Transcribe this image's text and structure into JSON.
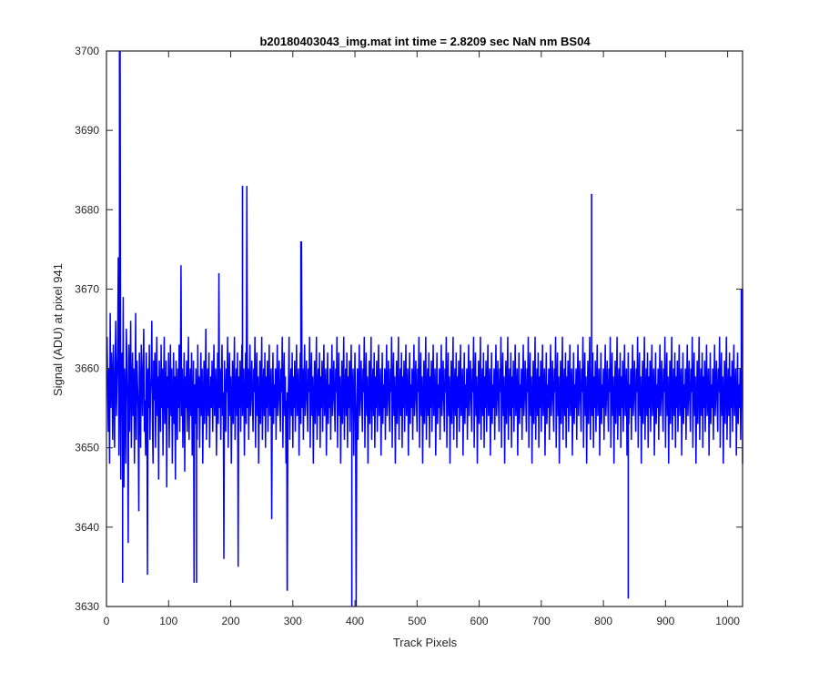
{
  "chart_data": {
    "type": "line",
    "title": "b20180403043_img.mat int time = 2.8209 sec  NaN nm BS04",
    "xlabel": "Track Pixels",
    "ylabel": "Signal (ADU) at pixel 941",
    "xlim": [
      0,
      1024
    ],
    "ylim": [
      3630,
      3700
    ],
    "xticks": [
      0,
      100,
      200,
      300,
      400,
      500,
      600,
      700,
      800,
      900,
      1000
    ],
    "yticks": [
      3630,
      3640,
      3650,
      3660,
      3670,
      3680,
      3690,
      3700
    ],
    "xtick_labels": [
      "0",
      "100",
      "200",
      "300",
      "400",
      "500",
      "600",
      "700",
      "800",
      "900",
      "1000"
    ],
    "ytick_labels": [
      "3630",
      "3640",
      "3650",
      "3660",
      "3670",
      "3680",
      "3690",
      "3700"
    ],
    "grid": false,
    "legend": "none",
    "series": [
      {
        "color": "#0000ff",
        "x_start": 1,
        "x_step": 1,
        "values": [
          3664,
          3657,
          3652,
          3660,
          3648,
          3667,
          3655,
          3662,
          3659,
          3651,
          3663,
          3657,
          3650,
          3661,
          3666,
          3654,
          3658,
          3662,
          3674,
          3649,
          3656,
          3700,
          3646,
          3659,
          3662,
          3653,
          3669,
          3645,
          3660,
          3657,
          3648,
          3665,
          3661,
          3655,
          3638,
          3663,
          3652,
          3659,
          3666,
          3650,
          3657,
          3662,
          3654,
          3660,
          3648,
          3656,
          3667,
          3651,
          3661,
          3658,
          3655,
          3642,
          3662,
          3657,
          3650,
          3663,
          3659,
          3654,
          3660,
          3665,
          3652,
          3656,
          3649,
          3662,
          3658,
          3634,
          3660,
          3655,
          3663,
          3651,
          3657,
          3659,
          3666,
          3653,
          3648,
          3661,
          3656,
          3662,
          3650,
          3658,
          3664,
          3654,
          3659,
          3646,
          3661,
          3657,
          3652,
          3663,
          3655,
          3660,
          3649,
          3658,
          3664,
          3653,
          3656,
          3661,
          3645,
          3659,
          3655,
          3662,
          3650,
          3657,
          3663,
          3654,
          3660,
          3648,
          3656,
          3662,
          3653,
          3659,
          3646,
          3661,
          3657,
          3651,
          3660,
          3655,
          3663,
          3652,
          3658,
          3673,
          3654,
          3660,
          3650,
          3656,
          3662,
          3647,
          3659,
          3655,
          3661,
          3652,
          3658,
          3664,
          3651,
          3657,
          3660,
          3654,
          3662,
          3649,
          3656,
          3661,
          3633,
          3658,
          3653,
          3660,
          3656,
          3651,
          3663,
          3655,
          3659,
          3650,
          3657,
          3662,
          3654,
          3660,
          3648,
          3656,
          3661,
          3653,
          3658,
          3665,
          3651,
          3657,
          3660,
          3654,
          3662,
          3650,
          3656,
          3659,
          3655,
          3661,
          3652,
          3658,
          3663,
          3654,
          3657,
          3660,
          3649,
          3656,
          3662,
          3653,
          3672,
          3655,
          3660,
          3651,
          3658,
          3663,
          3654,
          3657,
          3636,
          3661,
          3656,
          3652,
          3660,
          3657,
          3664,
          3650,
          3658,
          3662,
          3654,
          3659,
          3648,
          3656,
          3661,
          3653,
          3658,
          3664,
          3651,
          3657,
          3660,
          3654,
          3662,
          3635,
          3659,
          3655,
          3661,
          3652,
          3658,
          3663,
          3654,
          3657,
          3660,
          3649,
          3656,
          3662,
          3653,
          3683,
          3655,
          3660,
          3651,
          3658,
          3663,
          3654,
          3657,
          3661,
          3656,
          3652,
          3660,
          3657,
          3664,
          3650,
          3658,
          3662,
          3654,
          3659,
          3648,
          3656,
          3661,
          3653,
          3658,
          3664,
          3651,
          3657,
          3660,
          3654,
          3662,
          3650,
          3659,
          3655,
          3661,
          3652,
          3658,
          3663,
          3654,
          3657,
          3660,
          3641,
          3656,
          3662,
          3653,
          3658,
          3655,
          3660,
          3651,
          3658,
          3663,
          3654,
          3657,
          3661,
          3656,
          3652,
          3660,
          3657,
          3664,
          3650,
          3658,
          3662,
          3654,
          3659,
          3648,
          3656,
          3632,
          3653,
          3658,
          3664,
          3651,
          3657,
          3660,
          3654,
          3662,
          3650,
          3659,
          3655,
          3661,
          3652,
          3658,
          3663,
          3654,
          3657,
          3660,
          3649,
          3656,
          3662,
          3653,
          3676,
          3655,
          3660,
          3651,
          3658,
          3663,
          3654,
          3657,
          3661,
          3656,
          3652,
          3660,
          3657,
          3664,
          3650,
          3658,
          3662,
          3654,
          3659,
          3648,
          3656,
          3661,
          3653,
          3658,
          3664,
          3651,
          3657,
          3660,
          3654,
          3662,
          3650,
          3659,
          3655,
          3661,
          3652,
          3658,
          3663,
          3654,
          3657,
          3660,
          3649,
          3656,
          3662,
          3653,
          3658,
          3655,
          3660,
          3651,
          3658,
          3663,
          3654,
          3657,
          3661,
          3656,
          3652,
          3660,
          3657,
          3664,
          3650,
          3658,
          3662,
          3654,
          3659,
          3648,
          3656,
          3661,
          3653,
          3658,
          3664,
          3651,
          3657,
          3660,
          3654,
          3662,
          3650,
          3659,
          3655,
          3661,
          3652,
          3658,
          3663,
          3654,
          3657,
          3660,
          3649,
          3656,
          3662,
          3653,
          3630,
          3655,
          3660,
          3651,
          3658,
          3663,
          3654,
          3657,
          3661,
          3656,
          3652,
          3660,
          3657,
          3664,
          3650,
          3658,
          3662,
          3654,
          3659,
          3648,
          3656,
          3661,
          3653,
          3658,
          3664,
          3651,
          3657,
          3660,
          3654,
          3662,
          3650,
          3659,
          3655,
          3661,
          3652,
          3658,
          3663,
          3654,
          3657,
          3660,
          3649,
          3656,
          3662,
          3653,
          3658,
          3655,
          3660,
          3651,
          3658,
          3663,
          3654,
          3657,
          3661,
          3656,
          3652,
          3660,
          3657,
          3664,
          3650,
          3658,
          3662,
          3654,
          3659,
          3648,
          3656,
          3661,
          3653,
          3658,
          3664,
          3651,
          3657,
          3660,
          3654,
          3662,
          3650,
          3659,
          3655,
          3661,
          3652,
          3658,
          3663,
          3654,
          3657,
          3660,
          3649,
          3656,
          3662,
          3653,
          3658,
          3655,
          3660,
          3651,
          3658,
          3663,
          3654,
          3657,
          3661,
          3656,
          3652,
          3660,
          3657,
          3664,
          3650,
          3658,
          3662,
          3654,
          3659,
          3648,
          3656,
          3661,
          3653,
          3658,
          3664,
          3651,
          3657,
          3660,
          3654,
          3662,
          3650,
          3659,
          3655,
          3661,
          3652,
          3658,
          3663,
          3654,
          3657,
          3660,
          3649,
          3656,
          3662,
          3653,
          3658,
          3655,
          3660,
          3651,
          3658,
          3663,
          3654,
          3657,
          3661,
          3656,
          3652,
          3660,
          3657,
          3664,
          3650,
          3658,
          3662,
          3654,
          3659,
          3648,
          3656,
          3661,
          3653,
          3658,
          3664,
          3651,
          3657,
          3660,
          3654,
          3662,
          3650,
          3659,
          3655,
          3661,
          3652,
          3658,
          3663,
          3654,
          3657,
          3660,
          3649,
          3656,
          3662,
          3653,
          3658,
          3655,
          3660,
          3651,
          3658,
          3663,
          3654,
          3657,
          3661,
          3656,
          3652,
          3660,
          3657,
          3664,
          3650,
          3658,
          3662,
          3654,
          3659,
          3648,
          3656,
          3661,
          3653,
          3658,
          3664,
          3651,
          3657,
          3660,
          3654,
          3662,
          3650,
          3659,
          3655,
          3661,
          3652,
          3658,
          3663,
          3654,
          3657,
          3660,
          3649,
          3656,
          3662,
          3653,
          3658,
          3655,
          3660,
          3651,
          3658,
          3663,
          3654,
          3657,
          3661,
          3656,
          3652,
          3660,
          3657,
          3664,
          3650,
          3658,
          3662,
          3654,
          3659,
          3648,
          3656,
          3661,
          3653,
          3658,
          3664,
          3651,
          3657,
          3660,
          3654,
          3662,
          3650,
          3659,
          3655,
          3661,
          3652,
          3658,
          3663,
          3654,
          3657,
          3660,
          3649,
          3656,
          3662,
          3653,
          3658,
          3655,
          3660,
          3651,
          3658,
          3663,
          3654,
          3657,
          3661,
          3656,
          3652,
          3660,
          3657,
          3664,
          3650,
          3658,
          3662,
          3654,
          3659,
          3648,
          3656,
          3661,
          3653,
          3658,
          3664,
          3651,
          3657,
          3660,
          3654,
          3662,
          3650,
          3659,
          3655,
          3661,
          3652,
          3658,
          3663,
          3654,
          3657,
          3660,
          3649,
          3656,
          3662,
          3653,
          3658,
          3655,
          3660,
          3651,
          3658,
          3663,
          3654,
          3657,
          3661,
          3656,
          3652,
          3660,
          3657,
          3664,
          3650,
          3658,
          3662,
          3654,
          3659,
          3648,
          3656,
          3661,
          3653,
          3658,
          3664,
          3651,
          3657,
          3660,
          3654,
          3662,
          3650,
          3659,
          3655,
          3661,
          3652,
          3658,
          3663,
          3654,
          3657,
          3660,
          3649,
          3656,
          3662,
          3653,
          3658,
          3655,
          3660,
          3651,
          3658,
          3663,
          3654,
          3657,
          3661,
          3656,
          3652,
          3660,
          3657,
          3664,
          3650,
          3658,
          3662,
          3654,
          3659,
          3648,
          3656,
          3661,
          3653,
          3658,
          3664,
          3651,
          3657,
          3660,
          3654,
          3662,
          3650,
          3659,
          3655,
          3661,
          3652,
          3658,
          3663,
          3654,
          3657,
          3660,
          3649,
          3656,
          3662,
          3653,
          3658,
          3655,
          3660,
          3651,
          3658,
          3663,
          3654,
          3657,
          3661,
          3656,
          3652,
          3660,
          3657,
          3664,
          3650,
          3658,
          3662,
          3654,
          3659,
          3648,
          3656,
          3661,
          3653,
          3658,
          3664,
          3651,
          3657,
          3660,
          3654,
          3662,
          3650,
          3659,
          3655,
          3661,
          3652,
          3658,
          3663,
          3654,
          3657,
          3660,
          3649,
          3656,
          3662,
          3653,
          3658,
          3655,
          3660,
          3651,
          3658,
          3663,
          3654,
          3657,
          3661,
          3656,
          3652,
          3660,
          3657,
          3664,
          3650,
          3658,
          3662,
          3654,
          3659,
          3648,
          3656,
          3661,
          3653,
          3658,
          3664,
          3651,
          3657,
          3660,
          3654,
          3662,
          3650,
          3659,
          3655,
          3661,
          3652,
          3658,
          3663,
          3654,
          3657,
          3660,
          3649,
          3656,
          3662,
          3653,
          3658,
          3655,
          3660,
          3651,
          3658,
          3663,
          3654,
          3657,
          3661,
          3656,
          3652,
          3660,
          3657,
          3664,
          3650,
          3658,
          3662,
          3654,
          3659,
          3648,
          3656,
          3661,
          3653,
          3658,
          3664,
          3651,
          3657,
          3660,
          3654,
          3662,
          3650,
          3659,
          3655,
          3661,
          3652,
          3658,
          3663,
          3654,
          3657,
          3660,
          3649,
          3656,
          3662,
          3653,
          3658,
          3655,
          3660,
          3651,
          3658,
          3663,
          3654,
          3657,
          3661,
          3656,
          3652,
          3660,
          3657,
          3664,
          3650,
          3658,
          3662,
          3654,
          3659,
          3648,
          3656,
          3661,
          3653,
          3658,
          3664,
          3651,
          3657,
          3660,
          3654,
          3662,
          3650,
          3659,
          3655,
          3661,
          3652,
          3658,
          3663,
          3654,
          3657,
          3660,
          3649,
          3656,
          3662,
          3653,
          3658,
          3655,
          3660,
          3651,
          3658,
          3663,
          3654,
          3657,
          3661,
          3656,
          3652,
          3660,
          3657,
          3664,
          3650,
          3658,
          3662,
          3654,
          3659,
          3648,
          3656,
          3661,
          3653,
          3658,
          3664,
          3651,
          3657,
          3660,
          3654,
          3662,
          3650,
          3659,
          3655,
          3661,
          3652,
          3658,
          3663,
          3654,
          3657,
          3660,
          3649,
          3656,
          3662,
          3653,
          3658,
          3655,
          3660,
          3651,
          3658,
          3663,
          3654,
          3657,
          3661,
          3656,
          3652,
          3660,
          3657,
          3664,
          3650,
          3658,
          3662,
          3654,
          3659,
          3648,
          3656,
          3661,
          3653,
          3658,
          3664,
          3651,
          3657,
          3660,
          3654,
          3662,
          3650,
          3659,
          3655,
          3661,
          3652,
          3658,
          3663,
          3654,
          3657,
          3660,
          3649,
          3656,
          3662,
          3653,
          3658,
          3655,
          3660,
          3651,
          3658,
          3663,
          3654,
          3657,
          3661,
          3656,
          3652,
          3660,
          3657,
          3664,
          3650,
          3658,
          3662,
          3654,
          3659,
          3648,
          3656,
          3661,
          3653,
          3658,
          3664,
          3651,
          3657,
          3660,
          3654,
          3662,
          3650,
          3659,
          3655,
          3661,
          3652,
          3658,
          3663,
          3654,
          3657,
          3660,
          3670,
          3656,
          3648
        ]
      }
    ],
    "highlights": [
      {
        "x": 21,
        "y": 3700
      },
      {
        "x": 26,
        "y": 3633
      },
      {
        "x": 145,
        "y": 3633
      },
      {
        "x": 219,
        "y": 3683
      },
      {
        "x": 291,
        "y": 3632
      },
      {
        "x": 313,
        "y": 3676
      },
      {
        "x": 395,
        "y": 3630
      },
      {
        "x": 781,
        "y": 3682
      },
      {
        "x": 840,
        "y": 3631
      },
      {
        "x": 1022,
        "y": 3670
      }
    ]
  }
}
